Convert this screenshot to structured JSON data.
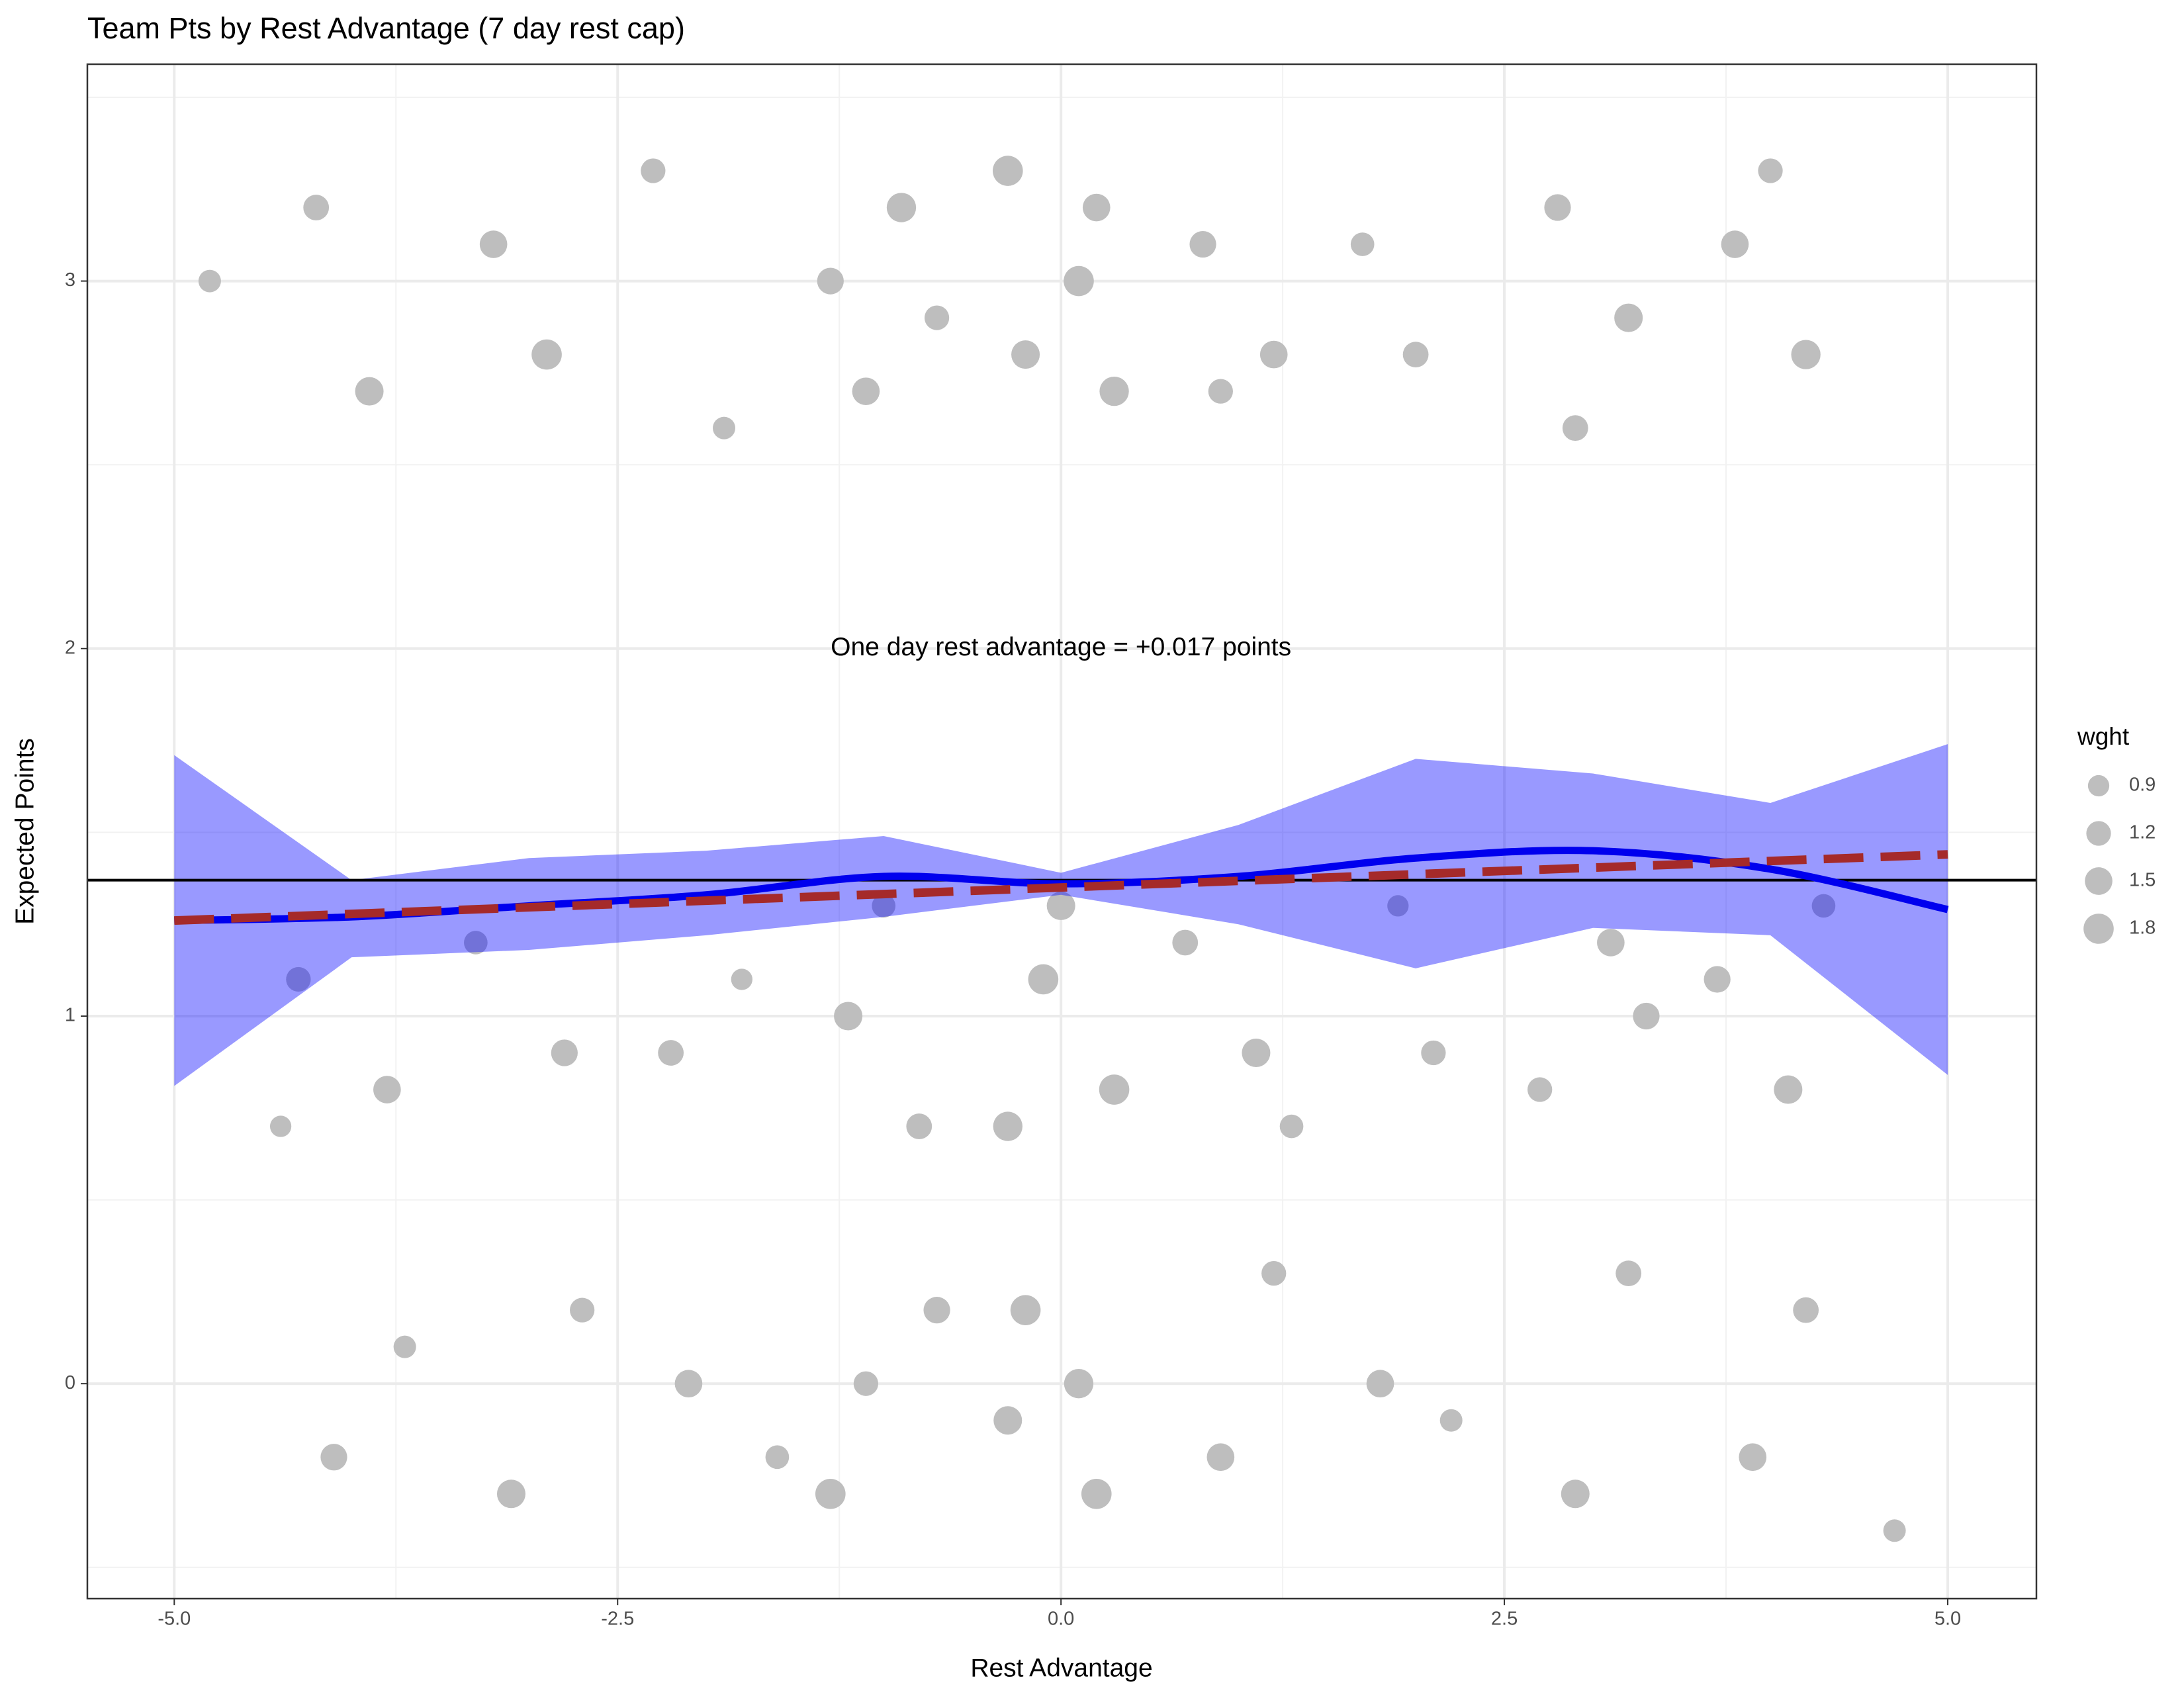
{
  "chart_data": {
    "type": "scatter",
    "title": "Team Pts by Rest Advantage (7 day rest cap)",
    "x_label": "Rest Advantage",
    "y_label": "Expected Points",
    "annotation": {
      "text": "One day rest advantage = +0.017 points",
      "x": 0,
      "y": 2
    },
    "xlim": [
      -5.49,
      5.5
    ],
    "ylim": [
      -0.585,
      3.59
    ],
    "xticks": [
      {
        "value": -5,
        "label": "-5.0"
      },
      -2.5,
      {
        "value": 0,
        "label": "0.0"
      },
      2.5,
      {
        "value": 5,
        "label": "5.0"
      }
    ],
    "yticks": [
      0,
      1,
      2,
      3
    ],
    "x_minor_ticks": [
      -3.75,
      -1.25,
      1.25,
      3.75
    ],
    "y_minor_ticks": [
      -0.5,
      0.5,
      1.5,
      2.5,
      3.5
    ],
    "grid": true,
    "points": {
      "color": "#bebebe",
      "x": [
        -4.8,
        -4.2,
        -3.9,
        -4.3,
        -3.8,
        -4.1,
        -3.7,
        -4.4,
        -3.2,
        -2.9,
        -3.3,
        -2.8,
        -3.1,
        -2.7,
        -2.3,
        -1.9,
        -2.2,
        -1.8,
        -2.1,
        -1.6,
        -1.3,
        -0.9,
        -1.1,
        -0.7,
        -1.2,
        -0.8,
        -1.0,
        -1.3,
        -0.7,
        -1.1,
        -0.3,
        0.1,
        0.3,
        -0.2,
        0.2,
        -0.1,
        0.3,
        -0.3,
        0.0,
        0.2,
        -0.2,
        0.1,
        -0.3,
        0.8,
        1.2,
        0.9,
        1.1,
        0.7,
        1.3,
        0.9,
        1.2,
        1.7,
        2.0,
        1.9,
        2.1,
        1.8,
        2.2,
        2.8,
        3.2,
        2.9,
        3.1,
        2.7,
        3.3,
        2.9,
        3.2,
        3.8,
        4.2,
        4.0,
        3.7,
        4.1,
        4.3,
        3.9,
        4.2,
        4.7
      ],
      "values": [
        3.0,
        3.2,
        2.7,
        1.1,
        0.8,
        -0.2,
        0.1,
        0.7,
        3.1,
        2.8,
        1.2,
        0.9,
        -0.3,
        0.2,
        3.3,
        2.6,
        0.9,
        1.1,
        0.0,
        -0.2,
        3.0,
        3.2,
        2.7,
        2.9,
        1.0,
        0.7,
        1.3,
        -0.3,
        0.2,
        0.0,
        3.3,
        3.0,
        2.7,
        2.8,
        3.2,
        1.1,
        0.8,
        0.7,
        1.3,
        -0.3,
        0.2,
        0.0,
        -0.1,
        3.1,
        2.8,
        2.7,
        0.9,
        1.2,
        0.7,
        -0.2,
        0.3,
        3.1,
        2.8,
        1.3,
        0.9,
        0.0,
        -0.1,
        3.2,
        2.9,
        2.6,
        1.2,
        0.8,
        1.0,
        -0.3,
        0.3,
        3.1,
        2.8,
        3.3,
        1.1,
        0.8,
        1.3,
        -0.2,
        0.2,
        -0.4
      ],
      "sizes": [
        1.0,
        1.3,
        1.6,
        1.2,
        1.5,
        1.4,
        1.0,
        0.9,
        1.5,
        1.8,
        1.1,
        1.4,
        1.6,
        1.2,
        1.2,
        1.0,
        1.3,
        0.9,
        1.5,
        1.1,
        1.4,
        1.7,
        1.5,
        1.2,
        1.6,
        1.3,
        1.1,
        1.8,
        1.4,
        1.2,
        1.8,
        1.8,
        1.7,
        1.6,
        1.5,
        1.8,
        1.8,
        1.7,
        1.6,
        1.8,
        1.8,
        1.7,
        1.6,
        1.4,
        1.5,
        1.2,
        1.6,
        1.3,
        1.1,
        1.5,
        1.2,
        1.1,
        1.3,
        0.9,
        1.2,
        1.5,
        1.0,
        1.4,
        1.6,
        1.3,
        1.5,
        1.2,
        1.4,
        1.6,
        1.3,
        1.5,
        1.7,
        1.2,
        1.4,
        1.6,
        1.1,
        1.5,
        1.3,
        1.0
      ]
    },
    "band": {
      "color": "#0000ff",
      "x": [
        -5,
        -4,
        -3,
        -2,
        -1,
        0,
        1,
        2,
        3,
        4,
        5
      ],
      "upper": [
        1.71,
        1.37,
        1.43,
        1.45,
        1.49,
        1.39,
        1.52,
        1.7,
        1.66,
        1.58,
        1.74
      ],
      "lower": [
        0.81,
        1.16,
        1.18,
        1.22,
        1.27,
        1.33,
        1.25,
        1.13,
        1.24,
        1.22,
        0.84
      ]
    },
    "smooth": {
      "color": "#0000ee",
      "x": [
        -5,
        -4,
        -3,
        -2,
        -1,
        0,
        1,
        2,
        3,
        4,
        5
      ],
      "values": [
        1.26,
        1.27,
        1.3,
        1.33,
        1.38,
        1.36,
        1.38,
        1.43,
        1.45,
        1.4,
        1.29
      ]
    },
    "linear_fit": {
      "color": "#a52a2a",
      "x": [
        -5,
        5
      ],
      "values": [
        1.26,
        1.44
      ]
    },
    "hline": 1.37,
    "legend": {
      "title": "wght",
      "sizes": [
        0.9,
        1.2,
        1.5,
        1.8
      ],
      "position": "right"
    }
  }
}
